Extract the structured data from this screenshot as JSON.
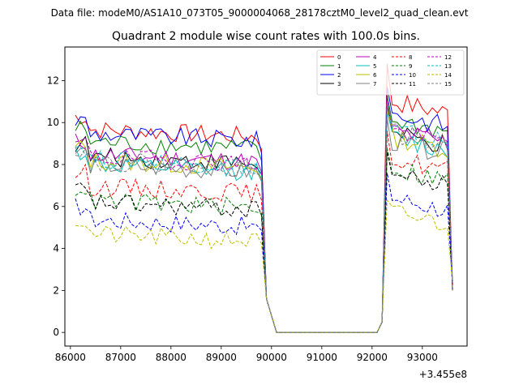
{
  "chart_data": {
    "type": "line",
    "suptitle": "Data file: modeM0/AS1A10_073T05_9000004068_28178cztM0_level2_quad_clean.evt",
    "title": "Quadrant 2 module wise count rates with 100.0s bins.",
    "xlabel": "",
    "ylabel": "",
    "x_offset_label": "+3.455e8",
    "xlim": [
      85890,
      93890
    ],
    "ylim": [
      -0.65,
      13.6
    ],
    "xticks": [
      86000,
      87000,
      88000,
      89000,
      90000,
      91000,
      92000,
      93000
    ],
    "yticks": [
      0,
      2,
      4,
      6,
      8,
      10,
      12
    ],
    "segments": [
      {
        "name": "pre-gap",
        "x_start": 86100,
        "step": 100,
        "n": 39
      },
      {
        "name": "gap",
        "x": [
          90100,
          92100
        ]
      },
      {
        "name": "post-gap",
        "x_start": 92200,
        "step": 100,
        "n": 15
      }
    ],
    "legend_position": "upper right",
    "series": [
      {
        "name": "0",
        "color": "#ff0000",
        "dash": "solid",
        "level_pre": 9.7,
        "level_post": 11.0,
        "peak": 12.8
      },
      {
        "name": "1",
        "color": "#008000",
        "dash": "solid",
        "level_pre": 9.1,
        "level_post": 10.1,
        "peak": 11.3
      },
      {
        "name": "2",
        "color": "#0000ff",
        "dash": "solid",
        "level_pre": 9.5,
        "level_post": 10.4,
        "peak": 11.7
      },
      {
        "name": "3",
        "color": "#000000",
        "dash": "solid",
        "level_pre": 8.4,
        "level_post": 9.4,
        "peak": 10.9
      },
      {
        "name": "4",
        "color": "#bf00bf",
        "dash": "solid",
        "level_pre": 8.5,
        "level_post": 9.6,
        "peak": 11.0
      },
      {
        "name": "5",
        "color": "#00bfbf",
        "dash": "solid",
        "level_pre": 8.0,
        "level_post": 9.2,
        "peak": 10.5
      },
      {
        "name": "6",
        "color": "#bfbf00",
        "dash": "solid",
        "level_pre": 8.2,
        "level_post": 9.3,
        "peak": 10.6
      },
      {
        "name": "7",
        "color": "#808080",
        "dash": "solid",
        "level_pre": 8.0,
        "level_post": 9.1,
        "peak": 10.2
      },
      {
        "name": "8",
        "color": "#ff0000",
        "dash": "dashed",
        "level_pre": 7.0,
        "level_post": 8.3,
        "peak": 9.6
      },
      {
        "name": "9",
        "color": "#008000",
        "dash": "dashed",
        "level_pre": 6.3,
        "level_post": 7.8,
        "peak": 8.8
      },
      {
        "name": "10",
        "color": "#0000ff",
        "dash": "dashed",
        "level_pre": 5.4,
        "level_post": 6.4,
        "peak": 7.6
      },
      {
        "name": "11",
        "color": "#000000",
        "dash": "dashed",
        "level_pre": 6.2,
        "level_post": 7.5,
        "peak": 8.6
      },
      {
        "name": "12",
        "color": "#bf00bf",
        "dash": "dashed",
        "level_pre": 8.4,
        "level_post": 9.6,
        "peak": 11.2
      },
      {
        "name": "13",
        "color": "#00bfbf",
        "dash": "dashed",
        "level_pre": 8.3,
        "level_post": 9.6,
        "peak": 11.0
      },
      {
        "name": "14",
        "color": "#bfbf00",
        "dash": "dashed",
        "level_pre": 4.7,
        "level_post": 5.7,
        "peak": 6.3
      },
      {
        "name": "15",
        "color": "#808080",
        "dash": "dashed",
        "level_pre": 8.2,
        "level_post": 9.5,
        "peak": 10.9
      }
    ]
  }
}
